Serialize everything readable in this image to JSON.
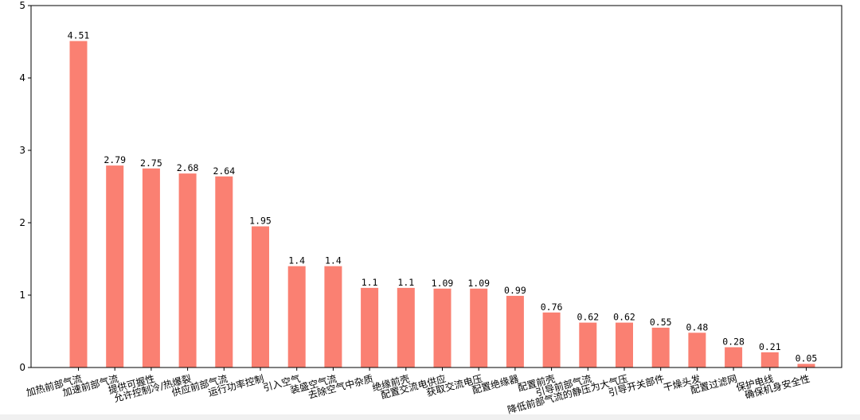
{
  "chart_data": {
    "type": "bar",
    "title": "",
    "xlabel": "",
    "ylabel": "",
    "ylim": [
      0,
      5
    ],
    "yticks": [
      0,
      1,
      2,
      3,
      4,
      5
    ],
    "grid": false,
    "bar_color": "#fa8072",
    "categories": [
      "加热前部气流",
      "加速前部气流",
      "提供可握性",
      "允许控制冷/热爆裂",
      "供应前部气流",
      "运行功率控制",
      "引入空气",
      "装盛空气流",
      "去除空气中杂质",
      "绝缘前壳",
      "配置交流电供应",
      "获取交流电压",
      "配置绝缘器",
      "配置前壳",
      "引导前部气流",
      "降低前部气流的静压为大气压",
      "引导开关部件",
      "干燥头发",
      "配置过滤网",
      "保护电线",
      "确保机身安全性"
    ],
    "values": [
      4.51,
      2.79,
      2.75,
      2.68,
      2.64,
      1.95,
      1.4,
      1.4,
      1.1,
      1.1,
      1.09,
      1.09,
      0.99,
      0.76,
      0.62,
      0.62,
      0.55,
      0.48,
      0.28,
      0.21,
      0.05
    ],
    "value_labels": [
      "4.51",
      "2.79",
      "2.75",
      "2.68",
      "2.64",
      "1.95",
      "1.4",
      "1.4",
      "1.1",
      "1.1",
      "1.09",
      "1.09",
      "0.99",
      "0.76",
      "0.62",
      "0.62",
      "0.55",
      "0.48",
      "0.28",
      "0.21",
      "0.05"
    ]
  }
}
